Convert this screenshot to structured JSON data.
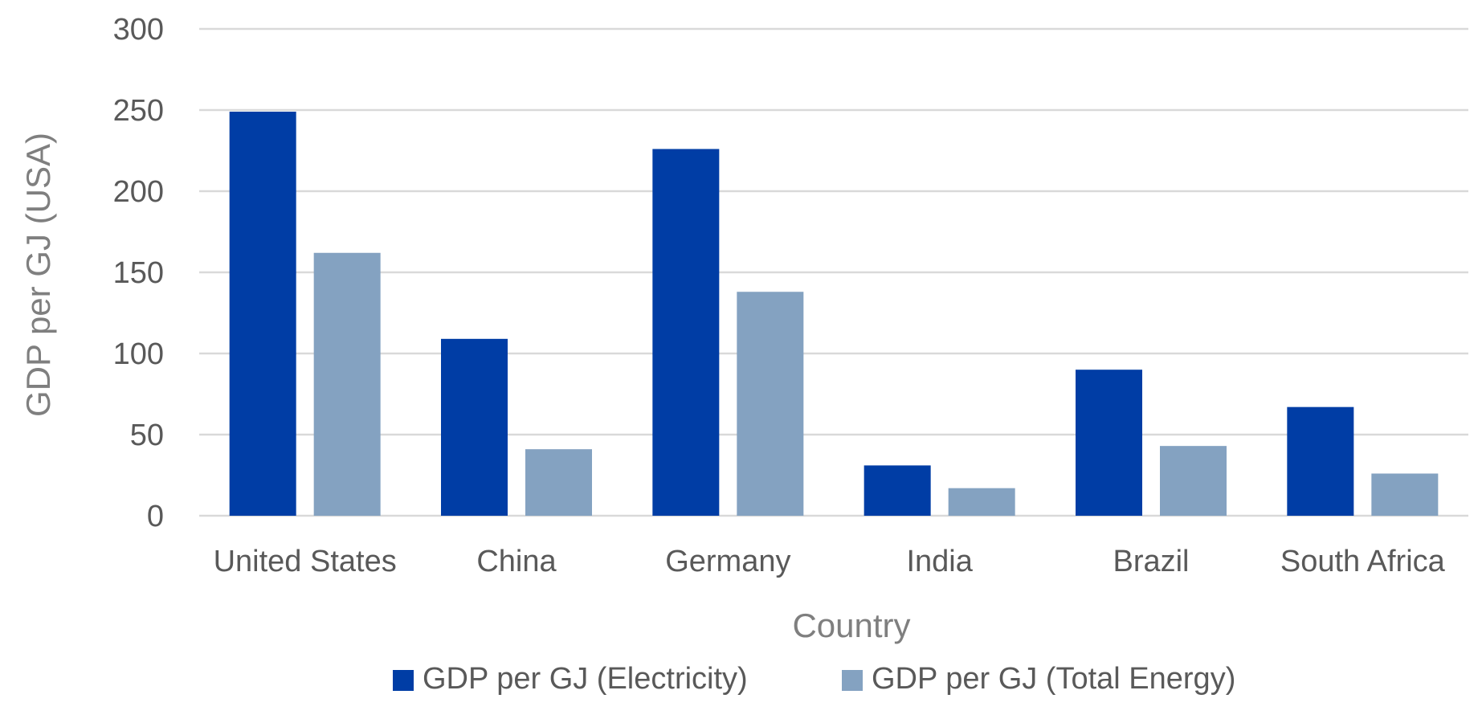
{
  "chart_data": {
    "type": "bar",
    "title": "",
    "xlabel": "Country",
    "ylabel": "GDP per GJ (USA)",
    "categories": [
      "United States",
      "China",
      "Germany",
      "India",
      "Brazil",
      "South Africa"
    ],
    "series": [
      {
        "name": "GDP per GJ (Electricity)",
        "color": "#003da5",
        "values": [
          249,
          109,
          226,
          31,
          90,
          67
        ]
      },
      {
        "name": "GDP per GJ (Total Energy)",
        "color": "#84a2c1",
        "values": [
          162,
          41,
          138,
          17,
          43,
          26
        ]
      }
    ],
    "ylim": [
      0,
      300
    ],
    "yticks": [
      0,
      50,
      100,
      150,
      200,
      250,
      300
    ],
    "grid": true,
    "legend_position": "bottom-center",
    "colors": {
      "gridline": "#d9d9d9",
      "tick_text": "#595959",
      "axis_title": "#7f7f7f"
    }
  }
}
